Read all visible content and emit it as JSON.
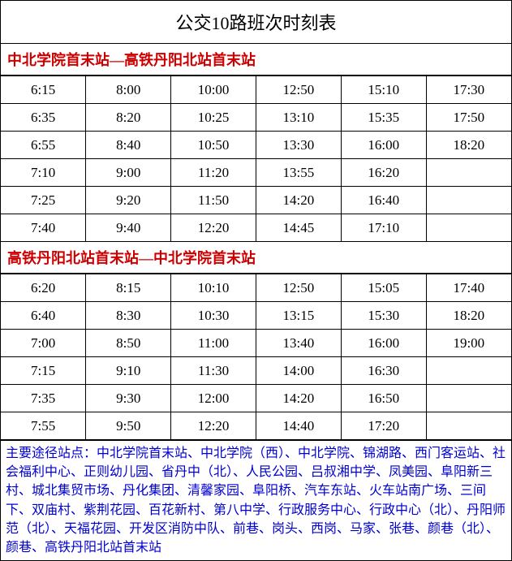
{
  "title": "公交10路班次时刻表",
  "colors": {
    "section_header": "#cc0000",
    "footnote": "#0000cc",
    "text": "#000000",
    "border": "#000000",
    "background": "#ffffff"
  },
  "sections": [
    {
      "header": "中北学院首末站—高铁丹阳北站首末站",
      "rows": [
        [
          "6:15",
          "8:00",
          "10:00",
          "12:50",
          "15:10",
          "17:30"
        ],
        [
          "6:35",
          "8:20",
          "10:25",
          "13:10",
          "15:35",
          "17:50"
        ],
        [
          "6:55",
          "8:40",
          "10:50",
          "13:30",
          "16:00",
          "18:20"
        ],
        [
          "7:10",
          "9:00",
          "11:20",
          "13:55",
          "16:20",
          ""
        ],
        [
          "7:25",
          "9:20",
          "11:50",
          "14:20",
          "16:40",
          ""
        ],
        [
          "7:40",
          "9:40",
          "12:20",
          "14:45",
          "17:10",
          ""
        ]
      ]
    },
    {
      "header": "高铁丹阳北站首末站—中北学院首末站",
      "rows": [
        [
          "6:20",
          "8:15",
          "10:10",
          "12:50",
          "15:05",
          "17:40"
        ],
        [
          "6:40",
          "8:30",
          "10:30",
          "13:15",
          "15:30",
          "18:20"
        ],
        [
          "7:00",
          "8:50",
          "11:00",
          "13:40",
          "16:00",
          "19:00"
        ],
        [
          "7:15",
          "9:10",
          "11:30",
          "14:00",
          "16:30",
          ""
        ],
        [
          "7:35",
          "9:30",
          "12:00",
          "14:20",
          "16:50",
          ""
        ],
        [
          "7:55",
          "9:50",
          "12:20",
          "14:40",
          "17:20",
          ""
        ]
      ]
    }
  ],
  "footnote": "主要途径站点：中北学院首末站、中北学院（西）、中北学院、锦湖路、西门客运站、社会福利中心、正则幼儿园、省丹中（北）、人民公园、吕叔湘中学、凤美园、阜阳新三村、城北集贸市场、丹化集团、清馨家园、阜阳桥、汽车东站、火车站南广场、三间下、双庙村、紫荆花园、百花新村、第八中学、行政服务中心、行政中心（北）、丹阳师范（北）、天福花园、开发区消防中队、前巷、岗头、西岗、马家、张巷、颜巷（北）、颜巷、高铁丹阳北站首末站"
}
